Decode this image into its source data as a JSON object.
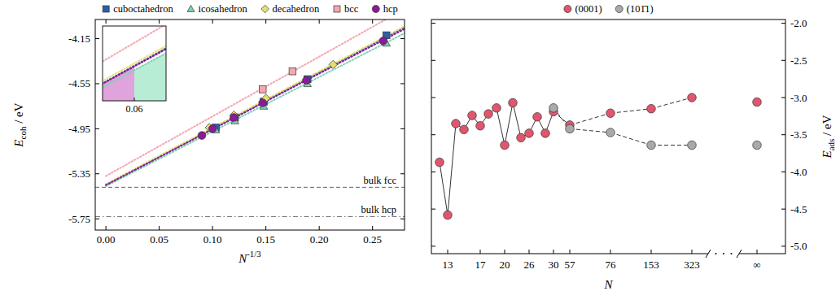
{
  "chart_data": [
    {
      "type": "scatter",
      "xlabel": {
        "text": "N",
        "sup": "-1/3"
      },
      "ylabel": {
        "text": "E",
        "sub": "coh",
        "after": " / eV"
      },
      "xlim": [
        -0.01,
        0.28
      ],
      "ylim": [
        -5.85,
        -3.98
      ],
      "xticks": [
        {
          "value": 0,
          "label": "0.00"
        },
        {
          "value": 0.05,
          "label": "0.05"
        },
        {
          "value": 0.1,
          "label": "0.10"
        },
        {
          "value": 0.15,
          "label": "0.15"
        },
        {
          "value": 0.2,
          "label": "0.20"
        },
        {
          "value": 0.25,
          "label": "0.25"
        }
      ],
      "yticks": [
        -4.15,
        -4.55,
        -4.95,
        -5.35,
        -5.75
      ],
      "legend": "top",
      "series": [
        {
          "name": "cuboctahedron",
          "color": "#2e5fa6",
          "marker": "square",
          "line_style": "dotted",
          "x": [
            0.263,
            0.189,
            0.148,
            0.121,
            0.103
          ],
          "values": [
            -4.12,
            -4.51,
            -4.71,
            -4.85,
            -4.94
          ],
          "fit_x": [
            0,
            0.28
          ],
          "fit_values": [
            -5.45,
            -4.05
          ]
        },
        {
          "name": "icosahedron",
          "color": "#7fd3b4",
          "marker": "triangle",
          "line_style": "dotted",
          "x": [
            0.263,
            0.189,
            0.148,
            0.121,
            0.103
          ],
          "values": [
            -4.19,
            -4.55,
            -4.75,
            -4.88,
            -4.96
          ],
          "fit_x": [
            0,
            0.28
          ],
          "fit_values": [
            -5.46,
            -4.102
          ]
        },
        {
          "name": "decahedron",
          "color": "#e6df6e",
          "marker": "diamond",
          "line_style": "dotted",
          "x": [
            0.213,
            0.15,
            0.12,
            0.097
          ],
          "values": [
            -4.38,
            -4.68,
            -4.83,
            -4.94
          ],
          "fit_x": [
            0,
            0.28
          ],
          "fit_values": [
            -5.44,
            -4.04
          ]
        },
        {
          "name": "bcc",
          "color": "#f4a7b0",
          "marker": "square",
          "line_style": "dotted",
          "x": [
            0.175,
            0.147
          ],
          "values": [
            -4.44,
            -4.6
          ],
          "fit_x": [
            0,
            0.28
          ],
          "fit_values": [
            -5.37,
            -3.886
          ]
        },
        {
          "name": "hcp",
          "color": "#8b1a9a",
          "marker": "circle",
          "line_style": "dotted",
          "x": [
            0.26,
            0.188,
            0.147,
            0.12,
            0.1,
            0.09
          ],
          "values": [
            -4.17,
            -4.52,
            -4.72,
            -4.85,
            -4.95,
            -5.01
          ],
          "fit_x": [
            0,
            0.28
          ],
          "fit_values": [
            -5.45,
            -4.064
          ]
        }
      ],
      "hlines": [
        {
          "value": -5.47,
          "label": "bulk fcc",
          "line_style": "dashed"
        },
        {
          "value": -5.73,
          "label": "bulk hcp",
          "line_style": "dashdot"
        }
      ],
      "inset": {
        "xlim": [
          0.045,
          0.075
        ],
        "ylim": [
          -5.3,
          -4.98
        ],
        "xticks": [
          {
            "value": 0.06,
            "label": "0.06"
          }
        ],
        "regions": [
          {
            "x": [
              0.045,
              0.06
            ],
            "color": "#e0a3dc",
            "under": "hcp"
          },
          {
            "x": [
              0.06,
              0.075
            ],
            "color": "#b8ecd5",
            "under": "icosahedron"
          }
        ]
      }
    },
    {
      "type": "line",
      "xlabel": "N",
      "ylabel": {
        "text": "E",
        "sub": "ads",
        "after": " / eV"
      },
      "categories": [
        null,
        "13",
        null,
        null,
        null,
        "17",
        null,
        null,
        "20",
        null,
        null,
        "26",
        null,
        null,
        "30",
        "57",
        "76",
        "153",
        "323",
        "∞"
      ],
      "ylim": [
        -5.1,
        -1.95
      ],
      "yticks": [
        {
          "value": -2,
          "label": "-2.0"
        },
        -2.5,
        {
          "value": -3,
          "label": "-3.0"
        },
        -3.5,
        {
          "value": -4,
          "label": "-4.0"
        },
        -4.5,
        {
          "value": -5,
          "label": "-5.0"
        }
      ],
      "legend": "top",
      "series": [
        {
          "name": "(0001)",
          "color": "#e0566e",
          "marker": "circle",
          "line_style": "solid",
          "values": [
            -3.87,
            -4.58,
            -3.35,
            -3.43,
            -3.24,
            -3.38,
            -3.22,
            -3.14,
            -3.64,
            -3.07,
            -3.54,
            -3.48,
            -3.26,
            -3.48,
            -3.19,
            -3.37,
            -3.21,
            -3.15,
            -3.0,
            -3.06
          ]
        },
        {
          "name": "(101̄1)",
          "color": "#a9a9a9",
          "marker": "circle",
          "line_style": "dashed",
          "values": [
            null,
            null,
            null,
            null,
            null,
            null,
            null,
            null,
            null,
            null,
            null,
            null,
            null,
            null,
            -3.14,
            -3.42,
            -3.47,
            -3.64,
            -3.64,
            -3.64
          ]
        }
      ]
    }
  ]
}
